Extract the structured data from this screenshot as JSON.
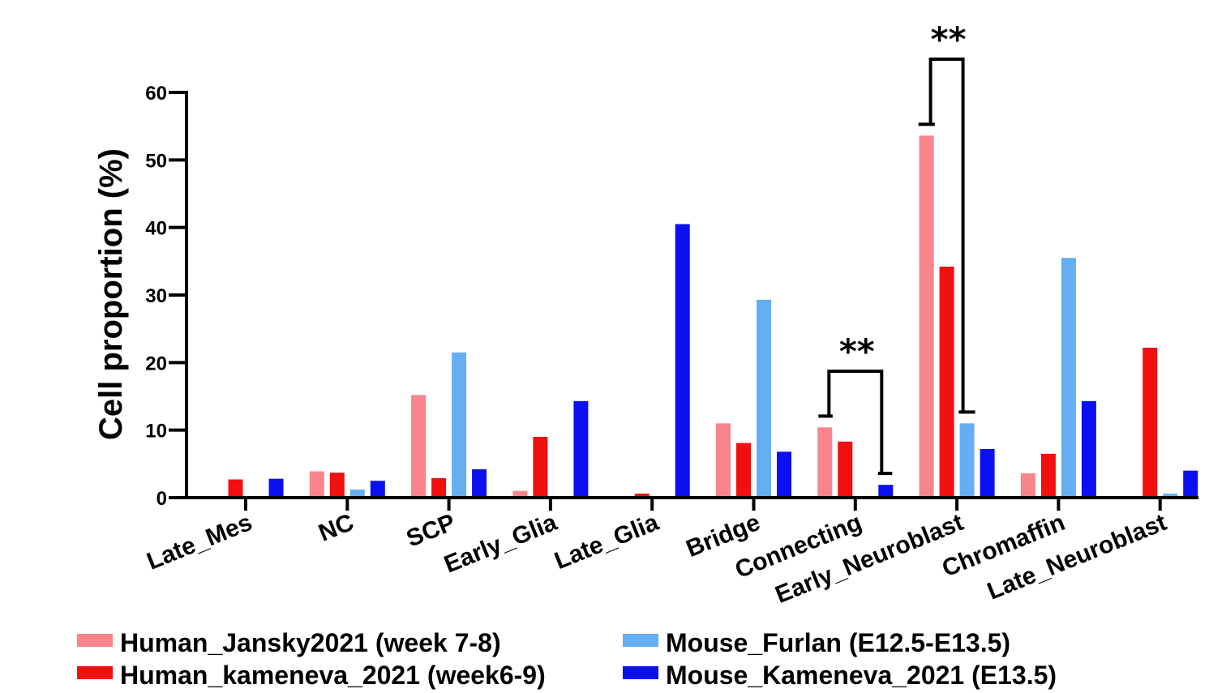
{
  "chart_data": {
    "type": "bar",
    "title": "",
    "xlabel": "",
    "ylabel": "Cell proportion (%)",
    "ylim": [
      0,
      60
    ],
    "yticks": [
      0,
      10,
      20,
      30,
      40,
      50,
      60
    ],
    "grid": false,
    "legend_position": "bottom",
    "categories": [
      "Late_Mes",
      "NC",
      "SCP",
      "Early_Glia",
      "Late_Glia",
      "Bridge",
      "Connecting",
      "Early_Neuroblast",
      "Chromaffin",
      "Late_Neuroblast"
    ],
    "series": [
      {
        "name": "Human_Jansky2021 (week 7-8)",
        "color": "#f7858b",
        "values": [
          0,
          3.9,
          15.2,
          1.0,
          0,
          11.0,
          10.4,
          53.6,
          3.6,
          0
        ]
      },
      {
        "name": "Human_kameneva_2021 (week6-9)",
        "color": "#f20f10",
        "values": [
          2.7,
          3.7,
          2.9,
          9.0,
          0.6,
          8.1,
          8.3,
          34.2,
          6.5,
          22.2
        ]
      },
      {
        "name": "Mouse_Furlan (E12.5-E13.5)",
        "color": "#66aef3",
        "values": [
          0,
          1.2,
          21.5,
          0,
          0,
          29.3,
          0,
          11.0,
          35.5,
          0.6
        ]
      },
      {
        "name": "Mouse_Kameneva_2021 (E13.5)",
        "color": "#0a10f0",
        "values": [
          2.8,
          2.5,
          4.2,
          14.3,
          40.5,
          6.8,
          1.9,
          7.2,
          14.3,
          4.0
        ]
      }
    ],
    "annotations": [
      {
        "label": "**",
        "category": "Connecting"
      },
      {
        "label": "**",
        "category": "Early_Neuroblast"
      }
    ]
  }
}
